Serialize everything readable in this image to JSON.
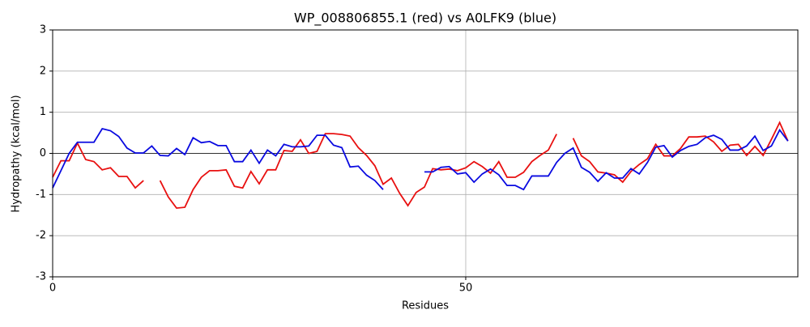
{
  "chart_data": {
    "type": "line",
    "title": "WP_008806855.1 (red) vs A0LFK9 (blue)",
    "x_label": "Residues",
    "y_label": "Hydropathy (kcal/mol)",
    "x": [
      0,
      1,
      2,
      3,
      4,
      5,
      6,
      7,
      8,
      9,
      10,
      11,
      12,
      13,
      14,
      15,
      16,
      17,
      18,
      19,
      20,
      21,
      22,
      23,
      24,
      25,
      26,
      27,
      28,
      29,
      30,
      31,
      32,
      33,
      34,
      35,
      36,
      37,
      38,
      39,
      40,
      41,
      42,
      43,
      44,
      45,
      46,
      47,
      48,
      49,
      50,
      51,
      52,
      53,
      54,
      55,
      56,
      57,
      58,
      59,
      60,
      61,
      62,
      63,
      64,
      65,
      66,
      67,
      68,
      69,
      70,
      71,
      72,
      73,
      74,
      75,
      76,
      77,
      78,
      79,
      80,
      81,
      82,
      83,
      84,
      85,
      86,
      87,
      88,
      89
    ],
    "series": [
      {
        "color": "#e81010",
        "values": [
          -0.58,
          -0.18,
          -0.18,
          0.25,
          -0.15,
          -0.2,
          -0.4,
          -0.35,
          -0.56,
          -0.56,
          -0.84,
          -0.66,
          null,
          -0.66,
          -1.06,
          -1.33,
          -1.31,
          -0.88,
          -0.58,
          -0.42,
          -0.42,
          -0.4,
          -0.8,
          -0.84,
          -0.44,
          -0.74,
          -0.4,
          -0.4,
          0.07,
          0.05,
          0.33,
          0,
          0.05,
          0.48,
          0.48,
          0.46,
          0.42,
          0.14,
          -0.05,
          -0.3,
          -0.75,
          -0.6,
          -0.97,
          -1.27,
          -0.95,
          -0.82,
          -0.37,
          -0.4,
          -0.38,
          -0.42,
          -0.35,
          -0.2,
          -0.32,
          -0.48,
          -0.2,
          -0.58,
          -0.58,
          -0.46,
          -0.2,
          -0.05,
          0.08,
          0.47,
          null,
          0.37,
          -0.06,
          -0.2,
          -0.45,
          -0.48,
          -0.52,
          -0.7,
          -0.44,
          -0.27,
          -0.13,
          0.22,
          -0.06,
          -0.06,
          0.12,
          0.4,
          0.4,
          0.42,
          0.28,
          0.05,
          0.2,
          0.22,
          -0.05,
          0.17,
          -0.05,
          0.34,
          0.75,
          0.3
        ]
      },
      {
        "color": "#0a0ae0",
        "values": [
          -0.84,
          -0.42,
          0,
          0.27,
          0.27,
          0.27,
          0.6,
          0.55,
          0.41,
          0.13,
          0.01,
          0.01,
          0.18,
          -0.05,
          -0.06,
          0.12,
          -0.03,
          0.38,
          0.26,
          0.29,
          0.19,
          0.19,
          -0.2,
          -0.2,
          0.08,
          -0.24,
          0.08,
          -0.06,
          0.22,
          0.16,
          0.16,
          0.18,
          0.44,
          0.44,
          0.2,
          0.14,
          -0.33,
          -0.31,
          -0.53,
          -0.66,
          -0.88,
          null,
          null,
          null,
          null,
          -0.45,
          -0.45,
          -0.34,
          -0.32,
          -0.5,
          -0.47,
          -0.7,
          -0.5,
          -0.38,
          -0.52,
          -0.78,
          -0.78,
          -0.88,
          -0.55,
          -0.55,
          -0.55,
          -0.22,
          0,
          0.13,
          -0.34,
          -0.46,
          -0.68,
          -0.47,
          -0.6,
          -0.6,
          -0.37,
          -0.5,
          -0.22,
          0.15,
          0.19,
          -0.09,
          0.07,
          0.17,
          0.22,
          0.38,
          0.44,
          0.34,
          0.08,
          0.08,
          0.18,
          0.42,
          0.07,
          0.18,
          0.57,
          0.3
        ]
      }
    ],
    "xlim": [
      0,
      90.2
    ],
    "ylim": [
      -3,
      3
    ],
    "xticks": [
      0,
      50
    ],
    "yticks": [
      -3,
      -2,
      -1,
      0,
      1,
      2,
      3
    ],
    "grid": true,
    "hline": 0
  }
}
